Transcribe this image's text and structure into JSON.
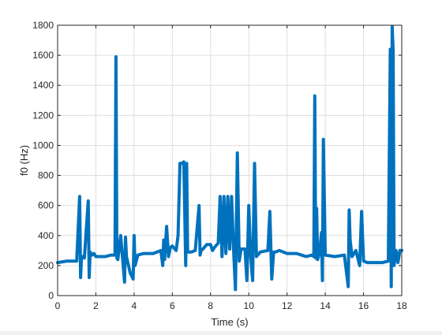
{
  "chart_data": {
    "type": "line",
    "xlabel": "Time (s)",
    "ylabel": "f0 (Hz)",
    "xlim": [
      0,
      18
    ],
    "ylim": [
      0,
      1800
    ],
    "xticks": [
      0,
      2,
      4,
      6,
      8,
      10,
      12,
      14,
      16,
      18
    ],
    "yticks": [
      0,
      200,
      400,
      600,
      800,
      1000,
      1200,
      1400,
      1600,
      1800
    ],
    "xtick_labels": [
      "0",
      "2",
      "4",
      "6",
      "8",
      "10",
      "12",
      "14",
      "16",
      "18"
    ],
    "ytick_labels": [
      "0",
      "200",
      "400",
      "600",
      "800",
      "1000",
      "1200",
      "1400",
      "1600",
      "1800"
    ],
    "grid": true,
    "line_color": "#0072bd",
    "series": [
      {
        "x": [
          0.0,
          0.5,
          1.0,
          1.15,
          1.2,
          1.25,
          1.3,
          1.4,
          1.6,
          1.65,
          1.7,
          1.8,
          1.9,
          2.0,
          2.5,
          2.8,
          3.0,
          3.05,
          3.1,
          3.15,
          3.3,
          3.5,
          3.55,
          3.6,
          3.8,
          3.95,
          4.0,
          4.05,
          4.2,
          4.5,
          5.0,
          5.4,
          5.5,
          5.55,
          5.6,
          5.7,
          5.8,
          5.9,
          6.0,
          6.2,
          6.3,
          6.4,
          6.5,
          6.6,
          6.7,
          6.75,
          6.8,
          6.9,
          7.0,
          7.2,
          7.4,
          7.45,
          7.5,
          7.6,
          7.8,
          8.0,
          8.1,
          8.2,
          8.4,
          8.5,
          8.6,
          8.7,
          8.8,
          8.9,
          9.0,
          9.1,
          9.2,
          9.3,
          9.4,
          9.5,
          9.6,
          9.8,
          9.9,
          10.0,
          10.1,
          10.2,
          10.3,
          10.4,
          10.6,
          11.0,
          11.1,
          11.2,
          11.3,
          11.4,
          11.6,
          11.8,
          12.0,
          12.5,
          13.0,
          13.3,
          13.4,
          13.45,
          13.5,
          13.55,
          13.6,
          13.7,
          13.8,
          13.85,
          13.9,
          14.0,
          14.5,
          15.0,
          15.2,
          15.25,
          15.3,
          15.4,
          15.6,
          15.8,
          15.9,
          16.0,
          16.2,
          16.5,
          17.0,
          17.3,
          17.4,
          17.45,
          17.5,
          17.55,
          17.6,
          17.7,
          17.8,
          17.9,
          18.0
        ],
        "y": [
          220,
          230,
          230,
          660,
          120,
          260,
          260,
          250,
          630,
          120,
          290,
          270,
          280,
          260,
          260,
          270,
          270,
          1590,
          250,
          240,
          400,
          90,
          390,
          260,
          150,
          110,
          400,
          200,
          270,
          280,
          280,
          300,
          200,
          370,
          240,
          460,
          260,
          320,
          330,
          300,
          400,
          880,
          880,
          890,
          200,
          880,
          290,
          290,
          290,
          300,
          600,
          270,
          300,
          310,
          340,
          340,
          300,
          320,
          350,
          660,
          260,
          660,
          280,
          660,
          310,
          660,
          320,
          40,
          950,
          230,
          310,
          310,
          100,
          600,
          260,
          100,
          880,
          260,
          290,
          300,
          560,
          110,
          290,
          290,
          300,
          290,
          280,
          280,
          260,
          270,
          260,
          1330,
          250,
          580,
          240,
          280,
          420,
          100,
          1040,
          270,
          260,
          270,
          60,
          570,
          370,
          260,
          300,
          200,
          560,
          230,
          220,
          220,
          220,
          230,
          1640,
          60,
          1790,
          1630,
          200,
          300,
          220,
          300,
          300
        ]
      }
    ]
  }
}
